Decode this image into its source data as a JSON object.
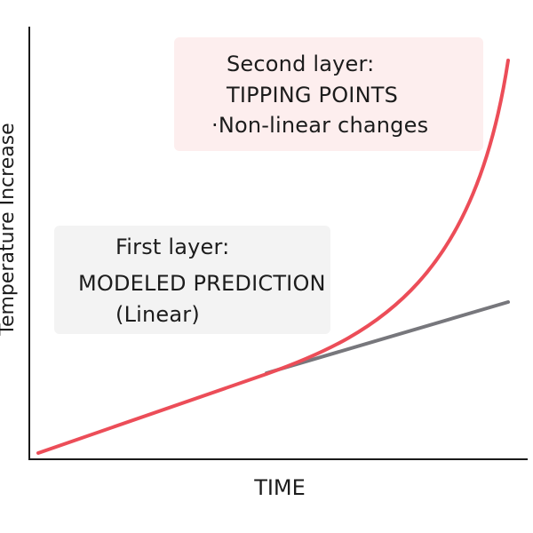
{
  "diagram": {
    "axes": {
      "x_label": "TIME",
      "y_label": "Temperature Increase"
    },
    "second_layer": {
      "heading": "Second layer:",
      "title": "TIPPING POINTS",
      "bullet_text": "·Non-linear changes"
    },
    "first_layer": {
      "heading": "First layer:",
      "title": "MODELED PREDICTION",
      "subtitle": "(Linear)"
    },
    "colors": {
      "linear_curve": "#77777c",
      "tipping_curve": "#ec4d58",
      "second_box_fill": "#fdeeee",
      "first_box_fill": "#f3f3f3",
      "axis": "#1a1a1a"
    }
  }
}
